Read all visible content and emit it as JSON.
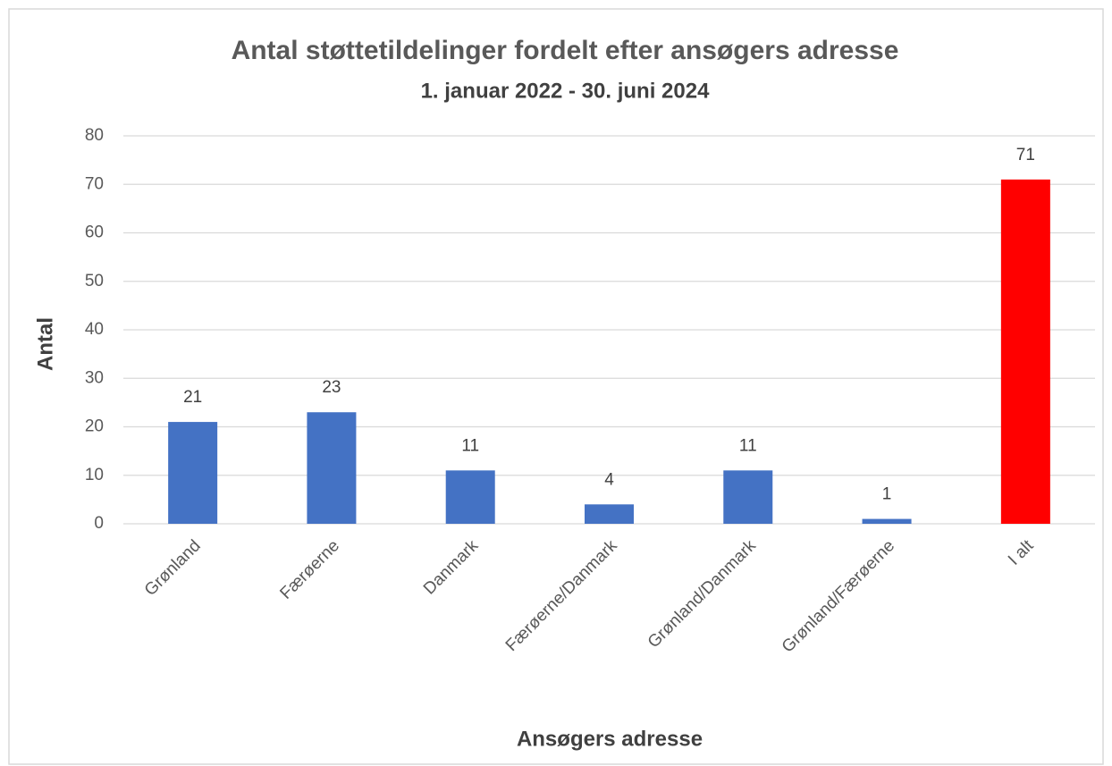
{
  "chart_data": {
    "type": "bar",
    "title": "Antal støttetildelinger fordelt efter ansøgers adresse",
    "subtitle": "1. januar 2022 - 30. juni 2024",
    "y_label": "Antal",
    "x_label": "Ansøgers adresse",
    "categories": [
      "Grønland",
      "Færøerne",
      "Danmark",
      "Færøerne/Danmark",
      "Grønland/Danmark",
      "Grønland/Færøerne",
      "I alt"
    ],
    "values": [
      21,
      23,
      11,
      4,
      11,
      1,
      71
    ],
    "colors": [
      "#4472c4",
      "#4472c4",
      "#4472c4",
      "#4472c4",
      "#4472c4",
      "#4472c4",
      "#ff0000"
    ],
    "ylim": [
      0,
      80
    ],
    "yticks": [
      0,
      10,
      20,
      30,
      40,
      50,
      60,
      70,
      80
    ],
    "grid": true
  }
}
